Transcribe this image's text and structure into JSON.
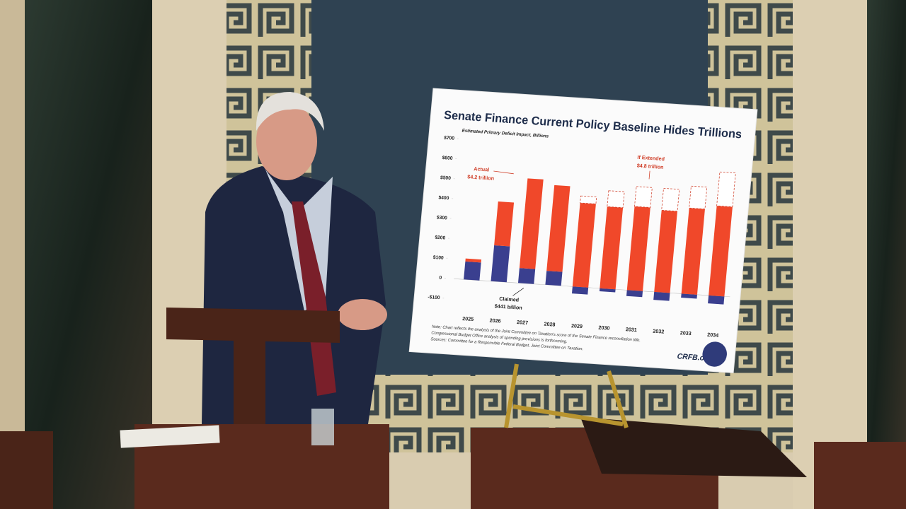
{
  "chart_data": {
    "type": "bar",
    "stacked": true,
    "title": "Senate Finance Current Policy Baseline Hides Trillions",
    "subtitle": "Estimated Primary Deficit Impact, Billions",
    "categories": [
      "2025",
      "2026",
      "2027",
      "2028",
      "2029",
      "2030",
      "2031",
      "2032",
      "2033",
      "2034"
    ],
    "series": [
      {
        "color": "#3a3f8f",
        "values": [
          90,
          180,
          75,
          70,
          -35,
          -15,
          -30,
          -40,
          -20,
          -40
        ]
      },
      {
        "color": "#f0482a",
        "values": [
          15,
          220,
          450,
          430,
          420,
          410,
          420,
          410,
          430,
          450
        ]
      },
      {
        "color": "#ffffff",
        "values": [
          0,
          0,
          0,
          0,
          35,
          80,
          100,
          110,
          110,
          170
        ]
      }
    ],
    "ylim": [
      -100,
      700
    ],
    "yticks": [
      {
        "value": -100,
        "label": "-$100"
      },
      0,
      {
        "value": 100,
        "label": "$100"
      },
      {
        "value": 200,
        "label": "$200"
      },
      {
        "value": 300,
        "label": "$300"
      },
      {
        "value": 400,
        "label": "$400"
      },
      {
        "value": 500,
        "label": "$500"
      },
      {
        "value": 600,
        "label": "$600"
      },
      {
        "value": 700,
        "label": "$700"
      }
    ],
    "annotations": [
      "Actual",
      "$4.2 trillion",
      "If Extended",
      "$4.8 trillion",
      "Claimed",
      "$441 billion"
    ],
    "notes": [
      "Note: Chart reflects the analysis of the Joint Committee on Taxation's score of the Senate Finance reconciliation title.",
      "Congressional Budget Office analysis of spending provisions is forthcoming.",
      "Sources: Committee for a Responsible Federal Budget, Joint Committee on Taxation."
    ],
    "source_logo": "CRFB.org"
  }
}
